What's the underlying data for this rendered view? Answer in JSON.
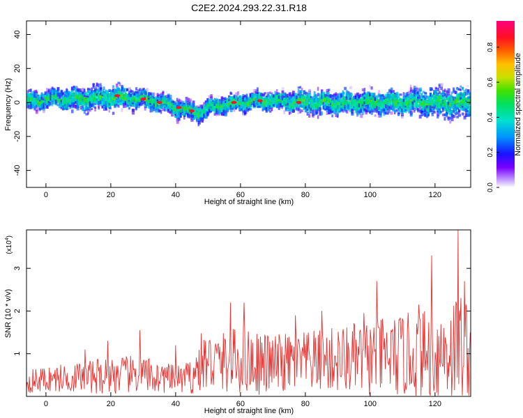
{
  "figure": {
    "title": "C2E2.2024.293.22.31.R18"
  },
  "chart_data": [
    {
      "type": "heatmap",
      "xlabel": "Height of straight line (km)",
      "ylabel": "Frequency (Hz)",
      "xlim": [
        -6,
        131
      ],
      "ylim": [
        -50,
        48
      ],
      "xticks": [
        0,
        20,
        40,
        60,
        80,
        100,
        120
      ],
      "yticks": [
        -40,
        -20,
        0,
        20,
        40
      ],
      "colorbar": {
        "label": "Normalized spectral amplitude",
        "range": [
          0.0,
          0.95
        ],
        "ticks": [
          0.0,
          0.2,
          0.4,
          0.6,
          0.8
        ],
        "tick_labels": [
          "0.0",
          "0.2",
          "0.4",
          "0.6",
          "0.8"
        ]
      },
      "ridge": {
        "x": [
          -6,
          0,
          10,
          20,
          30,
          35,
          40,
          44,
          47,
          50,
          55,
          60,
          65,
          70,
          80,
          90,
          100,
          110,
          120,
          130
        ],
        "y": [
          1,
          2,
          2,
          3,
          2,
          0,
          -3,
          -5,
          -6,
          -3,
          -1,
          0,
          1,
          1,
          0,
          0,
          0,
          0,
          0,
          0
        ],
        "spread": [
          3,
          3,
          4,
          4,
          3,
          3,
          3,
          3,
          3,
          3,
          3,
          3,
          3,
          3,
          4,
          4,
          4,
          4,
          5,
          5
        ]
      },
      "peaks": [
        {
          "x": 22,
          "y": 4
        },
        {
          "x": 30,
          "y": 2
        },
        {
          "x": 35,
          "y": 0
        },
        {
          "x": 41,
          "y": -3
        },
        {
          "x": 45,
          "y": -5
        },
        {
          "x": 58,
          "y": 0
        },
        {
          "x": 66,
          "y": 1
        },
        {
          "x": 78,
          "y": 0
        }
      ]
    },
    {
      "type": "line",
      "xlabel": "Height of straight line (km)",
      "ylabel": "SNR (10 * v/v)",
      "y_multiplier": "(x10",
      "y_multiplier_exp": "4",
      "y_multiplier_close": ")",
      "xlim": [
        -6,
        131
      ],
      "ylim": [
        0,
        3.9
      ],
      "xticks": [
        0,
        20,
        40,
        60,
        80,
        100,
        120
      ],
      "yticks": [
        1,
        2,
        3
      ],
      "color": "#e8312f",
      "envelope": {
        "x": [
          -6,
          0,
          10,
          20,
          30,
          40,
          45,
          48,
          55,
          60,
          70,
          80,
          90,
          100,
          110,
          120,
          125,
          128,
          131
        ],
        "mean": [
          0.35,
          0.4,
          0.45,
          0.5,
          0.5,
          0.4,
          0.45,
          0.8,
          0.8,
          0.85,
          0.75,
          0.8,
          0.85,
          0.9,
          0.95,
          1.0,
          1.1,
          1.2,
          1.1
        ],
        "amplitude": [
          0.3,
          0.35,
          0.4,
          0.5,
          0.5,
          0.35,
          0.45,
          0.8,
          0.8,
          0.9,
          0.8,
          0.8,
          0.9,
          1.0,
          1.1,
          1.2,
          1.4,
          1.5,
          1.3
        ]
      },
      "spikes": [
        {
          "x": 12,
          "y": 1.1
        },
        {
          "x": 19,
          "y": 1.3
        },
        {
          "x": 29,
          "y": 1.55
        },
        {
          "x": 40,
          "y": 1.2
        },
        {
          "x": 57,
          "y": 2.2
        },
        {
          "x": 61,
          "y": 2.2
        },
        {
          "x": 77,
          "y": 1.9
        },
        {
          "x": 85,
          "y": 2.0
        },
        {
          "x": 98,
          "y": 1.95
        },
        {
          "x": 102,
          "y": 2.7
        },
        {
          "x": 115,
          "y": 2.15
        },
        {
          "x": 119,
          "y": 3.3
        },
        {
          "x": 127,
          "y": 3.9
        },
        {
          "x": 129,
          "y": 2.7
        }
      ]
    }
  ]
}
